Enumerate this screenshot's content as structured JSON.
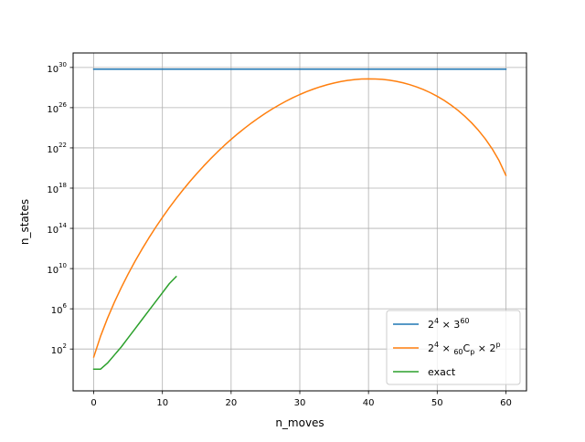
{
  "chart_data": {
    "type": "line",
    "title": "",
    "xlabel": "n_moves",
    "ylabel": "n_states",
    "xlim": [
      -3,
      63
    ],
    "ylim_log10": [
      -2.16,
      31.44
    ],
    "yscale": "log",
    "grid": true,
    "legend_placement": "lower-right",
    "x_ticks": [
      0,
      10,
      20,
      30,
      40,
      50,
      60
    ],
    "x_tick_labels": [
      "0",
      "10",
      "20",
      "30",
      "40",
      "50",
      "60"
    ],
    "y_ticks": [
      {
        "exp": 2,
        "base": "10",
        "sup": "2"
      },
      {
        "exp": 6,
        "base": "10",
        "sup": "6"
      },
      {
        "exp": 10,
        "base": "10",
        "sup": "10"
      },
      {
        "exp": 14,
        "base": "10",
        "sup": "14"
      },
      {
        "exp": 18,
        "base": "10",
        "sup": "18"
      },
      {
        "exp": 22,
        "base": "10",
        "sup": "22"
      },
      {
        "exp": 26,
        "base": "10",
        "sup": "26"
      },
      {
        "exp": 30,
        "base": "10",
        "sup": "30"
      }
    ],
    "series": [
      {
        "name": "2^4 × 3^60",
        "legend": [
          {
            "t": "2"
          },
          {
            "t": "4",
            "sup": true
          },
          {
            "t": " × 3"
          },
          {
            "t": "60",
            "sup": true
          }
        ],
        "color": "#1f77b4",
        "formula": "constant",
        "x": [
          0,
          60
        ],
        "log10_y": [
          29.83,
          29.83
        ]
      },
      {
        "name": "2^4 × 60Cp × 2^p",
        "legend": [
          {
            "t": "2"
          },
          {
            "t": "4",
            "sup": true
          },
          {
            "t": " × "
          },
          {
            "t": "60",
            "sub": true
          },
          {
            "t": "C"
          },
          {
            "t": "p",
            "sub": true
          },
          {
            "t": " × 2"
          },
          {
            "t": "p",
            "sup": true
          }
        ],
        "color": "#ff7f0e",
        "formula": "16 * C(60, x) * 2^x",
        "x_range": [
          0,
          60
        ]
      },
      {
        "name": "exact",
        "legend": [
          {
            "t": "exact"
          }
        ],
        "color": "#2ca02c",
        "formula": "points",
        "x": [
          0,
          1,
          2,
          3,
          4,
          5,
          6,
          7,
          8,
          9,
          10,
          11,
          12
        ],
        "log10_y": [
          0.0,
          0.0,
          0.6,
          1.4,
          2.2,
          3.1,
          4.0,
          4.9,
          5.8,
          6.7,
          7.6,
          8.5,
          9.2
        ]
      }
    ]
  }
}
